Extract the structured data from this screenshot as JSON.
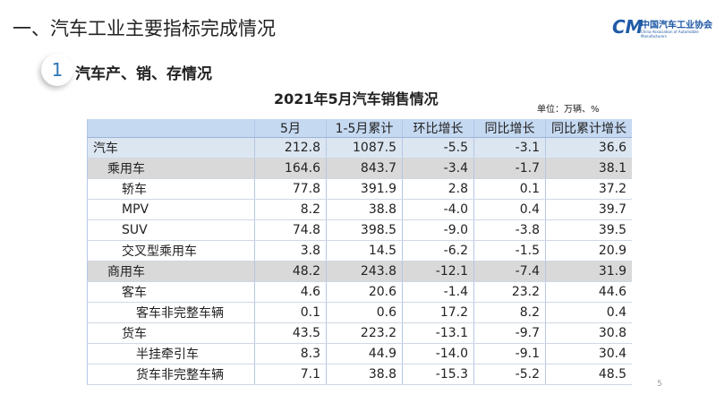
{
  "header": {
    "title": "一、汽车工业主要指标完成情况",
    "logo_mark": "CM",
    "logo_name": "中国汽车工业协会",
    "logo_name_en": "China Association of Automobile Manufacturers"
  },
  "section": {
    "number": "1",
    "title": "汽车产、销、存情况"
  },
  "table": {
    "title": "2021年5月汽车销售情况",
    "unit": "单位：万辆、%",
    "headers": [
      "5月",
      "1-5月累计",
      "环比增长",
      "同比增长",
      "同比累计增长"
    ],
    "rows": [
      [
        "汽车",
        "212.8",
        "1087.5",
        "-5.5",
        "-3.1",
        "36.6"
      ],
      [
        "乘用车",
        "164.6",
        "843.7",
        "-3.4",
        "-1.7",
        "38.1"
      ],
      [
        "轿车",
        "77.8",
        "391.9",
        "2.8",
        "0.1",
        "37.2"
      ],
      [
        "MPV",
        "8.2",
        "38.8",
        "-4.0",
        "0.4",
        "39.7"
      ],
      [
        "SUV",
        "74.8",
        "398.5",
        "-9.0",
        "-3.8",
        "39.5"
      ],
      [
        "交叉型乘用车",
        "3.8",
        "14.5",
        "-6.2",
        "-1.5",
        "20.9"
      ],
      [
        "商用车",
        "48.2",
        "243.8",
        "-12.1",
        "-7.4",
        "31.9"
      ],
      [
        "客车",
        "4.6",
        "20.6",
        "-1.4",
        "23.2",
        "44.6"
      ],
      [
        "客车非完整车辆",
        "0.1",
        "0.6",
        "17.2",
        "8.2",
        "0.4"
      ],
      [
        "货车",
        "43.5",
        "223.2",
        "-13.1",
        "-9.7",
        "30.8"
      ],
      [
        "半挂牵引车",
        "8.3",
        "44.9",
        "-14.0",
        "-9.1",
        "30.4"
      ],
      [
        "货车非完整车辆",
        "7.1",
        "38.8",
        "-15.3",
        "-5.2",
        "48.5"
      ]
    ]
  },
  "footer": {
    "page": "5"
  }
}
